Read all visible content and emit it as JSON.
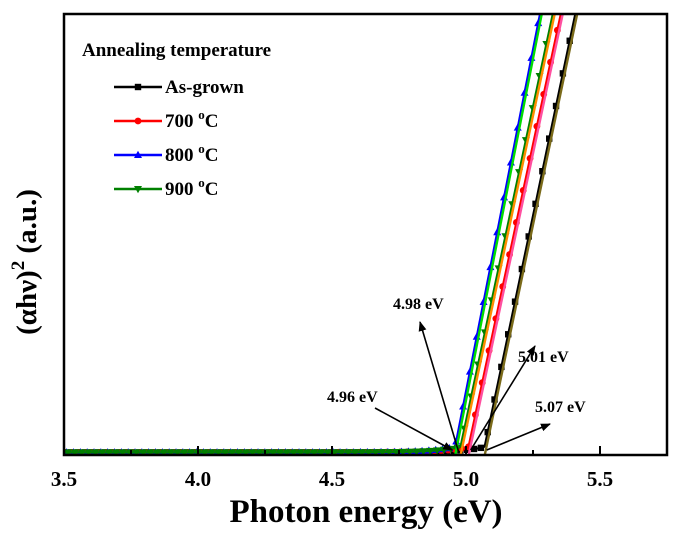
{
  "chart_data": {
    "type": "line",
    "xlabel": "Photon energy (eV)",
    "ylabel_main": "(αhν)",
    "ylabel_sup": "2",
    "ylabel_unit": " (a.u.)",
    "xlim": [
      3.5,
      5.75
    ],
    "ylim": [
      0,
      1
    ],
    "xticks": [
      {
        "value": 3.5,
        "label": "3.5"
      },
      {
        "value": 4.0,
        "label": "4.0"
      },
      {
        "value": 4.5,
        "label": "4.5"
      },
      {
        "value": 5.0,
        "label": "5.0"
      },
      {
        "value": 5.5,
        "label": "5.5"
      }
    ],
    "legend_title": "Annealing temperature",
    "series": [
      {
        "name": "As-grown",
        "label_main": "As-grown",
        "label_sup": "",
        "label_tail": "",
        "color": "#000000",
        "marker": "square",
        "fit_color": "#7a6a1a",
        "onset": 5.07,
        "slope": 2.9
      },
      {
        "name": "700 °C",
        "label_main": "700 ",
        "label_sup": "o",
        "label_tail": "C",
        "color": "#ff0000",
        "marker": "circle",
        "fit_color": "#ff4fa0",
        "onset": 5.01,
        "slope": 2.85
      },
      {
        "name": "800 °C",
        "label_main": "800 ",
        "label_sup": "o",
        "label_tail": "C",
        "color": "#0000ff",
        "marker": "triangle-up",
        "fit_color": "#00dd00",
        "onset": 4.96,
        "slope": 3.1
      },
      {
        "name": "900 °C",
        "label_main": "900 ",
        "label_sup": "o",
        "label_tail": "C",
        "color": "#008000",
        "marker": "triangle-down",
        "fit_color": "#ff8c00",
        "onset": 4.98,
        "slope": 2.85
      }
    ],
    "annotations": [
      {
        "text": "4.98 eV",
        "target_x": 4.98
      },
      {
        "text": "4.96 eV",
        "target_x": 4.96
      },
      {
        "text": "5.01 eV",
        "target_x": 5.01
      },
      {
        "text": "5.07 eV",
        "target_x": 5.07
      }
    ]
  }
}
